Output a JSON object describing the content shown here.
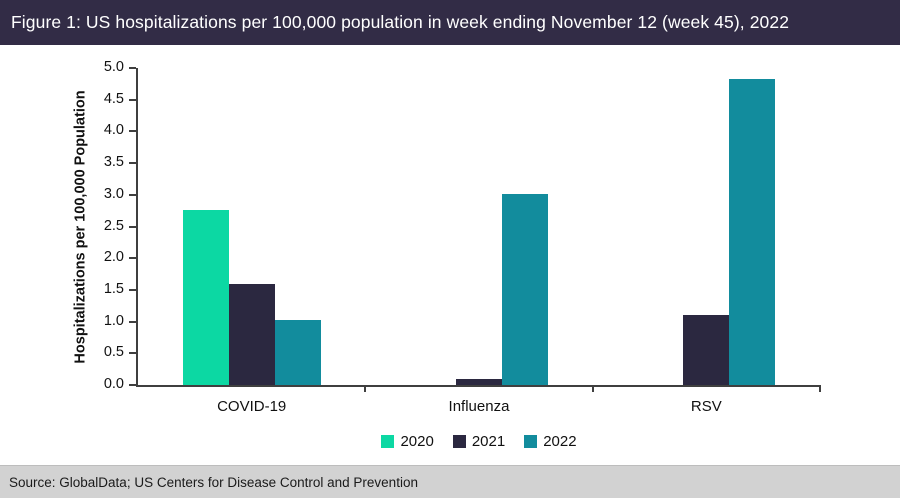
{
  "title": "Figure 1: US hospitalizations per 100,000 population in week ending November 12 (week 45), 2022",
  "source": "Source: GlobalData; US Centers for Disease Control and Prevention",
  "chart_data": {
    "type": "bar",
    "title": "US hospitalizations per 100,000 population in week ending November 12 (week 45), 2022",
    "categories": [
      "COVID-19",
      "Influenza",
      "RSV"
    ],
    "series": [
      {
        "name": "2020",
        "color": "#0cd8a3",
        "values": [
          2.76,
          0,
          0
        ]
      },
      {
        "name": "2021",
        "color": "#2b2840",
        "values": [
          1.59,
          0.1,
          1.1
        ]
      },
      {
        "name": "2022",
        "color": "#128c9d",
        "values": [
          1.02,
          3.02,
          4.82
        ]
      }
    ],
    "xlabel": "",
    "ylabel": "Hospitalizations per 100,000 Population",
    "ylim": [
      0,
      5.0
    ],
    "ytick_step": 0.5,
    "ytick_decimals": 1,
    "grid": false,
    "legend_position": "bottom"
  },
  "colors": {
    "title_bar_bg": "#322c46",
    "title_text": "#ffffff",
    "axis": "#3f3f3f",
    "source_bar_bg": "#d2d2d2",
    "series_2020": "#0cd8a3",
    "series_2021": "#2b2840",
    "series_2022": "#128c9d"
  }
}
